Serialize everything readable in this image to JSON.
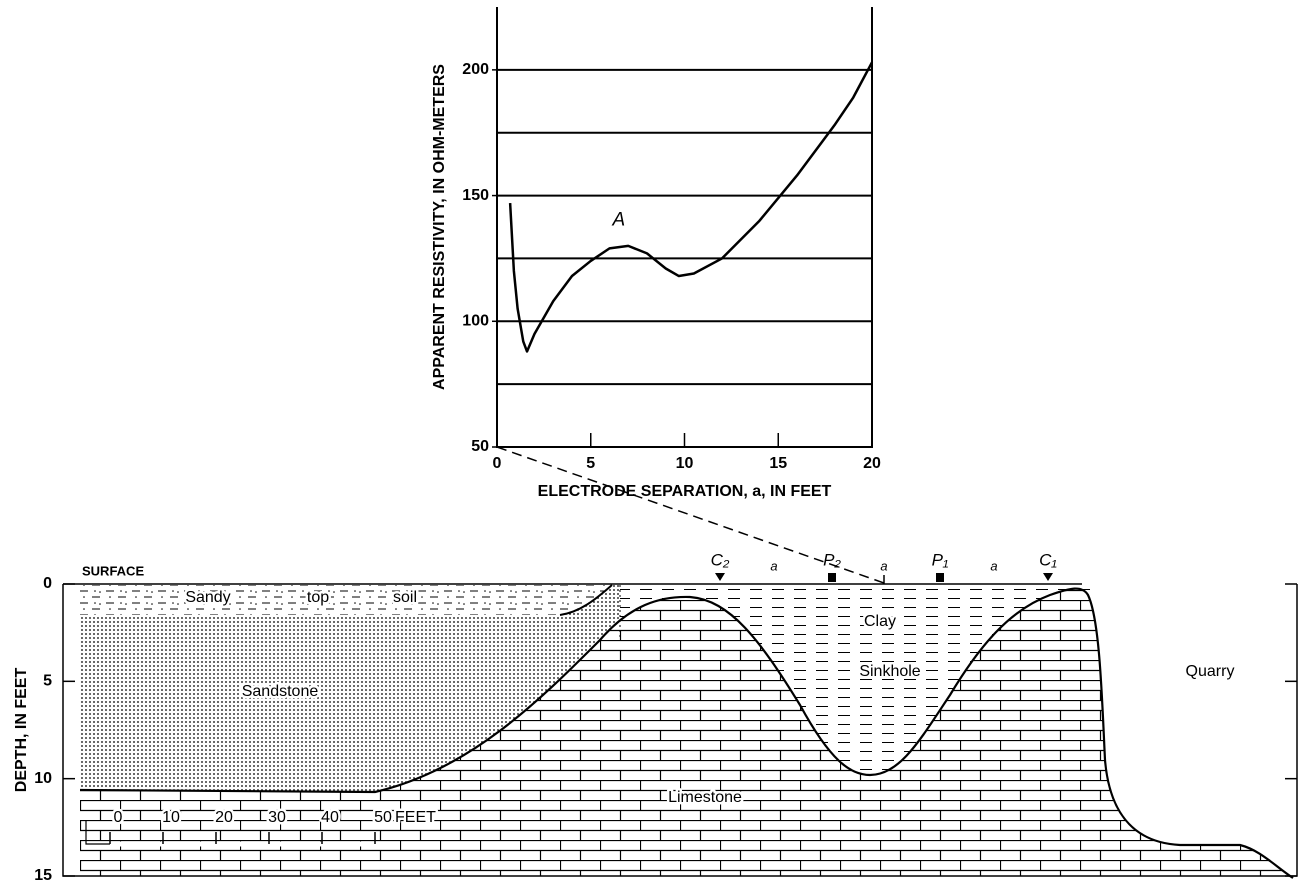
{
  "chart_data": [
    {
      "type": "line",
      "x": [
        0.7,
        0.9,
        1.1,
        1.4,
        1.6,
        2,
        3,
        4,
        5,
        6,
        7,
        8,
        9,
        9.7,
        10.5,
        12,
        14,
        16,
        18,
        19,
        20
      ],
      "values": [
        147,
        120,
        105,
        92,
        88,
        95,
        108,
        118,
        124,
        129,
        130,
        127,
        121,
        118,
        119,
        125,
        140,
        158,
        178,
        189,
        203
      ],
      "color": "#000000",
      "xlim": [
        0,
        20
      ],
      "ylim": [
        50,
        225
      ],
      "xticks": [
        0,
        5,
        10,
        15,
        20
      ],
      "yticks": [
        50,
        100,
        150,
        200
      ],
      "grid_yticks": [
        75,
        100,
        125,
        150,
        175,
        200
      ],
      "grid": true,
      "x_label": "ELECTRODE SEPARATION, a, IN FEET",
      "y_label": "APPARENT RESISTIVITY, IN OHM-METERS",
      "annotation": {
        "text": "A",
        "x": 6.5,
        "y": 140
      }
    },
    {
      "type": "cross-section",
      "y_label": "DEPTH, IN FEET",
      "ylim": [
        0,
        15
      ],
      "yticks": [
        0,
        5,
        10,
        15
      ],
      "surface_label": "SURFACE",
      "layers": [
        "Sandy",
        "top",
        "soil",
        "Sandstone",
        "Limestone",
        "Clay",
        "Sinkhole",
        "Quarry"
      ],
      "electrodes": [
        "C₂",
        "P₂",
        "P₁",
        "C₁"
      ],
      "spacing_labels": [
        "a",
        "a",
        "a"
      ],
      "scale_ticks": [
        0,
        10,
        20,
        30,
        40,
        50
      ],
      "scale_unit": "FEET"
    }
  ]
}
